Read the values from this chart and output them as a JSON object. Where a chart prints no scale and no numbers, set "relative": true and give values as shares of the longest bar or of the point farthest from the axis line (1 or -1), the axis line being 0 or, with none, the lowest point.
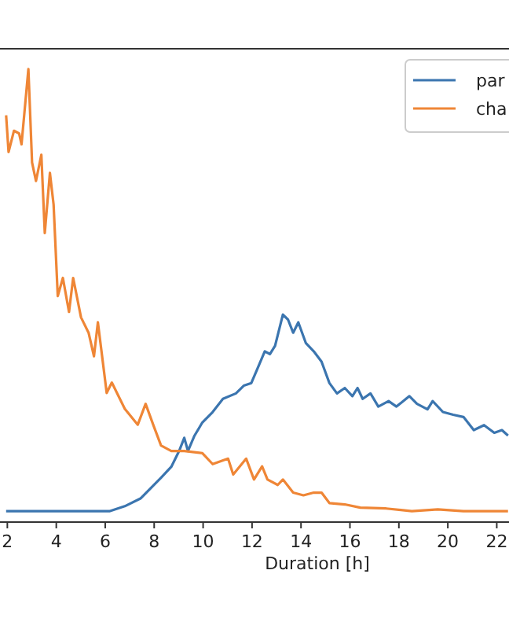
{
  "chart_data": {
    "type": "line",
    "xlabel": "Duration [h]",
    "relative": true,
    "legend": "top right",
    "grid": false,
    "xlim": [
      1.7,
      22.5
    ],
    "xticks": [
      2,
      4,
      6,
      8,
      10,
      12,
      14,
      16,
      18,
      20,
      22
    ],
    "series": [
      {
        "name": "par",
        "color": "#3b75af",
        "x": [
          1.95,
          3,
          4,
          5,
          6.17,
          6.8,
          7.44,
          7.86,
          8.28,
          8.7,
          9.02,
          9.23,
          9.38,
          9.65,
          9.97,
          10.39,
          10.81,
          11.34,
          11.66,
          11.97,
          12.2,
          12.52,
          12.73,
          12.94,
          13.26,
          13.47,
          13.68,
          13.89,
          14.2,
          14.52,
          14.84,
          15.16,
          15.47,
          15.79,
          16.1,
          16.31,
          16.52,
          16.84,
          17.16,
          17.58,
          17.9,
          18.43,
          18.74,
          19.17,
          19.38,
          19.8,
          20.22,
          20.64,
          21.06,
          21.48,
          21.9,
          22.21,
          22.46
        ],
        "values": [
          0.024,
          0.024,
          0.024,
          0.024,
          0.024,
          0.035,
          0.052,
          0.075,
          0.098,
          0.122,
          0.157,
          0.186,
          0.157,
          0.191,
          0.22,
          0.243,
          0.272,
          0.284,
          0.301,
          0.307,
          0.336,
          0.377,
          0.371,
          0.389,
          0.458,
          0.447,
          0.418,
          0.441,
          0.395,
          0.377,
          0.354,
          0.307,
          0.284,
          0.296,
          0.278,
          0.296,
          0.272,
          0.284,
          0.255,
          0.267,
          0.255,
          0.278,
          0.261,
          0.249,
          0.267,
          0.243,
          0.237,
          0.232,
          0.203,
          0.214,
          0.197,
          0.203,
          0.191
        ]
      },
      {
        "name": "cha",
        "color": "#ef8636",
        "x": [
          1.95,
          2.05,
          2.27,
          2.48,
          2.58,
          2.86,
          3.01,
          3.17,
          3.39,
          3.53,
          3.74,
          3.89,
          4.06,
          4.27,
          4.52,
          4.69,
          5.01,
          5.32,
          5.54,
          5.7,
          6.06,
          6.27,
          6.8,
          7.33,
          7.65,
          7.96,
          8.28,
          8.7,
          9.23,
          9.97,
          10.39,
          11.02,
          11.23,
          11.76,
          12.08,
          12.41,
          12.63,
          13.05,
          13.26,
          13.68,
          14.1,
          14.52,
          14.84,
          15.16,
          15.79,
          16.42,
          17.48,
          18.53,
          19.59,
          20.64,
          22.46
        ],
        "values": [
          0.898,
          0.817,
          0.864,
          0.858,
          0.834,
          1,
          0.794,
          0.753,
          0.811,
          0.638,
          0.771,
          0.701,
          0.499,
          0.539,
          0.464,
          0.539,
          0.452,
          0.418,
          0.366,
          0.441,
          0.285,
          0.308,
          0.25,
          0.215,
          0.261,
          0.215,
          0.169,
          0.157,
          0.157,
          0.152,
          0.128,
          0.14,
          0.105,
          0.14,
          0.094,
          0.123,
          0.094,
          0.082,
          0.094,
          0.065,
          0.059,
          0.065,
          0.065,
          0.042,
          0.039,
          0.032,
          0.03,
          0.024,
          0.028,
          0.024,
          0.024
        ]
      }
    ]
  }
}
